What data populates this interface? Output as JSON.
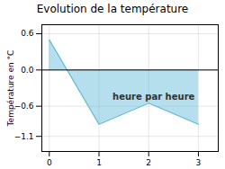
{
  "chart_data": {
    "type": "area",
    "title": "Evolution de la température",
    "y_label": "Température en °C",
    "x": [
      0,
      1,
      2,
      3
    ],
    "values": [
      0.5,
      -0.9,
      -0.55,
      -0.9
    ],
    "color": "#5bb8d4",
    "xlim": [
      -0.15,
      3.4
    ],
    "xticks": [
      0,
      1,
      2,
      3
    ],
    "ylim": [
      -1.35,
      0.75
    ],
    "yticks": [
      -1.1,
      -0.6,
      {
        "value": 0,
        "label": "0.0"
      },
      0.6
    ],
    "grid": true,
    "annotations": [
      {
        "text": "heure par heure",
        "x": 2.1,
        "y": -0.45
      }
    ]
  }
}
